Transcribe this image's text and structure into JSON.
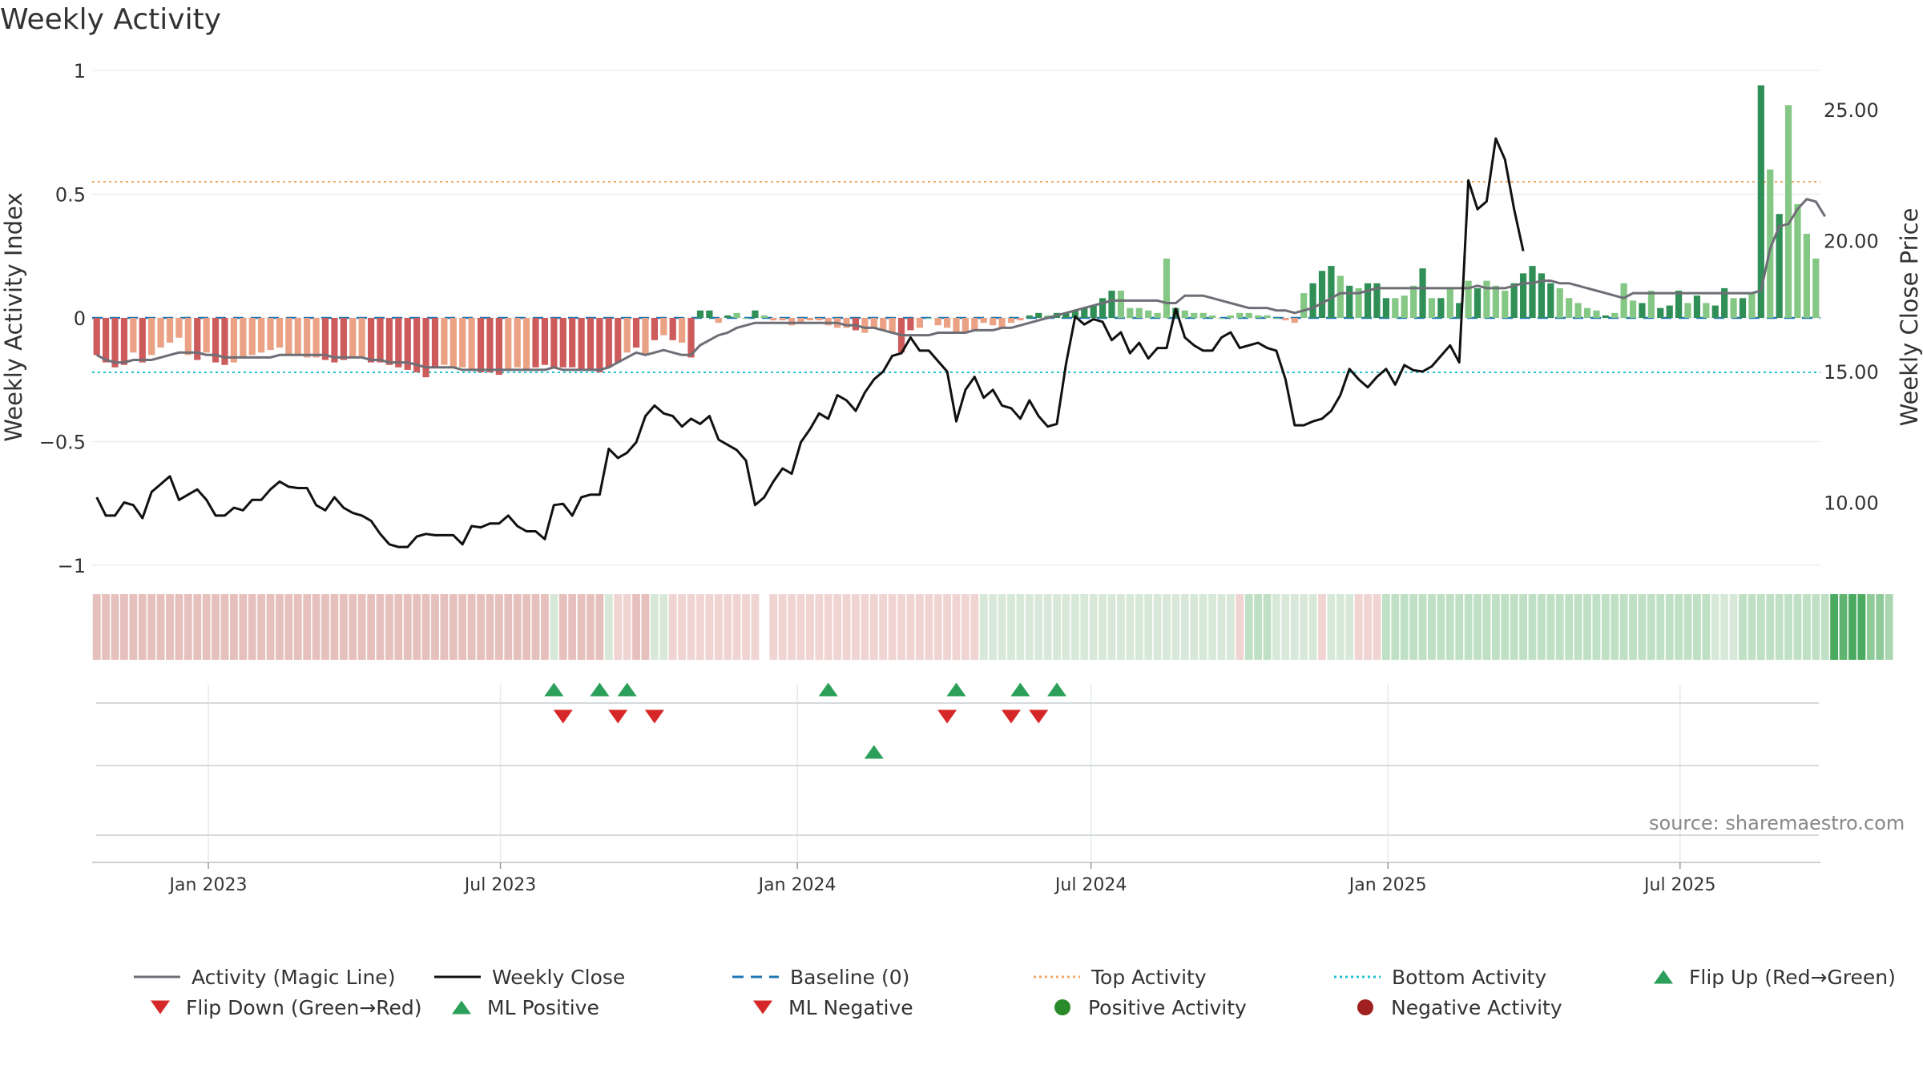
{
  "title": "Weekly Activity",
  "source": "source: sharemaestro.com",
  "colors": {
    "magic": "#6e6e76",
    "close": "#111111",
    "baseline": "#1f77b4",
    "top": "#f0a868",
    "bottom": "#21c3cf",
    "up": "#2ca05a",
    "down": "#d62728",
    "pos": "#2a8a2a",
    "neg": "#a02020"
  },
  "chart_data": {
    "type": "bar",
    "title": "Weekly Activity",
    "xlabel": "",
    "ylabel": "Weekly Activity Index",
    "ylabel_right": "Weekly Close Price",
    "ylim": [
      -1,
      1
    ],
    "ylim_right": [
      7.6,
      26.5
    ],
    "yticks": [
      1,
      0.5,
      0,
      -0.5,
      -1
    ],
    "ytick_labels": [
      "1",
      "0.5",
      "0",
      "−0.5",
      "−1"
    ],
    "yticks_right": [
      25,
      20,
      15,
      10
    ],
    "ytick_labels_right": [
      "25.00",
      "20.00",
      "15.00",
      "10.00"
    ],
    "x_start": "2022-10-21",
    "x_end": "2025-09-26",
    "x_ticks": [
      {
        "label": "Jan 2023",
        "date": "2023-01-01"
      },
      {
        "label": "Jul 2023",
        "date": "2023-07-01"
      },
      {
        "label": "Jan 2024",
        "date": "2024-01-01"
      },
      {
        "label": "Jul 2024",
        "date": "2024-07-01"
      },
      {
        "label": "Jan 2025",
        "date": "2025-01-01"
      },
      {
        "label": "Jul 2025",
        "date": "2025-07-01"
      }
    ],
    "top_activity": 0.55,
    "bottom_activity": -0.22,
    "baseline": 0,
    "activity": [
      -0.15,
      -0.18,
      -0.2,
      -0.19,
      -0.14,
      -0.18,
      -0.15,
      -0.12,
      -0.1,
      -0.08,
      -0.15,
      -0.17,
      -0.14,
      -0.18,
      -0.19,
      -0.18,
      -0.16,
      -0.15,
      -0.14,
      -0.13,
      -0.12,
      -0.15,
      -0.15,
      -0.16,
      -0.16,
      -0.17,
      -0.18,
      -0.17,
      -0.16,
      -0.16,
      -0.18,
      -0.18,
      -0.19,
      -0.2,
      -0.21,
      -0.22,
      -0.24,
      -0.2,
      -0.19,
      -0.2,
      -0.2,
      -0.21,
      -0.22,
      -0.22,
      -0.23,
      -0.21,
      -0.2,
      -0.21,
      -0.2,
      -0.19,
      -0.2,
      -0.2,
      -0.2,
      -0.21,
      -0.21,
      -0.22,
      -0.2,
      -0.18,
      -0.14,
      -0.12,
      -0.15,
      -0.09,
      -0.07,
      -0.09,
      -0.1,
      -0.16,
      0.03,
      0.03,
      -0.02,
      0.01,
      0.02,
      0.0,
      0.03,
      0.01,
      -0.01,
      -0.01,
      -0.03,
      -0.02,
      -0.01,
      -0.01,
      -0.03,
      -0.04,
      -0.04,
      -0.05,
      -0.06,
      -0.04,
      -0.05,
      -0.06,
      -0.14,
      -0.05,
      -0.04,
      0.0,
      -0.03,
      -0.04,
      -0.06,
      -0.06,
      -0.05,
      -0.02,
      -0.03,
      -0.04,
      -0.02,
      -0.01,
      0.01,
      0.02,
      0.01,
      0.02,
      0.02,
      0.03,
      0.04,
      0.05,
      0.08,
      0.11,
      0.11,
      0.04,
      0.04,
      0.03,
      0.02,
      0.24,
      0.04,
      0.03,
      0.02,
      0.02,
      0.01,
      0.0,
      0.01,
      0.02,
      0.02,
      0.01,
      0.01,
      0.0,
      -0.01,
      -0.02,
      0.1,
      0.14,
      0.19,
      0.21,
      0.17,
      0.13,
      0.12,
      0.14,
      0.14,
      0.08,
      0.08,
      0.09,
      0.13,
      0.2,
      0.08,
      0.08,
      0.12,
      0.06,
      0.15,
      0.12,
      0.15,
      0.13,
      0.11,
      0.14,
      0.18,
      0.21,
      0.18,
      0.14,
      0.12,
      0.08,
      0.06,
      0.04,
      0.03,
      0.01,
      0.02,
      0.14,
      0.07,
      0.06,
      0.11,
      0.04,
      0.05,
      0.11,
      0.06,
      0.09,
      0.06,
      0.05,
      0.12,
      0.08,
      0.08,
      0.1,
      0.94,
      0.6,
      0.42,
      0.86,
      0.46,
      0.34,
      0.24
    ],
    "magic_line": [
      -0.15,
      -0.17,
      -0.18,
      -0.18,
      -0.17,
      -0.17,
      -0.17,
      -0.16,
      -0.15,
      -0.14,
      -0.14,
      -0.14,
      -0.15,
      -0.15,
      -0.16,
      -0.16,
      -0.16,
      -0.16,
      -0.16,
      -0.16,
      -0.15,
      -0.15,
      -0.15,
      -0.15,
      -0.15,
      -0.15,
      -0.16,
      -0.16,
      -0.16,
      -0.16,
      -0.17,
      -0.17,
      -0.18,
      -0.18,
      -0.18,
      -0.19,
      -0.2,
      -0.2,
      -0.2,
      -0.2,
      -0.21,
      -0.21,
      -0.21,
      -0.21,
      -0.21,
      -0.21,
      -0.21,
      -0.21,
      -0.21,
      -0.21,
      -0.2,
      -0.21,
      -0.21,
      -0.21,
      -0.21,
      -0.21,
      -0.2,
      -0.18,
      -0.16,
      -0.14,
      -0.15,
      -0.14,
      -0.13,
      -0.14,
      -0.15,
      -0.15,
      -0.11,
      -0.09,
      -0.07,
      -0.06,
      -0.04,
      -0.03,
      -0.02,
      -0.02,
      -0.02,
      -0.02,
      -0.02,
      -0.02,
      -0.02,
      -0.02,
      -0.02,
      -0.02,
      -0.03,
      -0.03,
      -0.04,
      -0.04,
      -0.05,
      -0.06,
      -0.07,
      -0.07,
      -0.07,
      -0.07,
      -0.06,
      -0.06,
      -0.06,
      -0.06,
      -0.05,
      -0.05,
      -0.05,
      -0.04,
      -0.04,
      -0.03,
      -0.02,
      -0.01,
      0.0,
      0.01,
      0.02,
      0.03,
      0.04,
      0.05,
      0.06,
      0.07,
      0.07,
      0.07,
      0.07,
      0.07,
      0.07,
      0.06,
      0.06,
      0.09,
      0.09,
      0.09,
      0.08,
      0.07,
      0.06,
      0.05,
      0.04,
      0.04,
      0.04,
      0.03,
      0.03,
      0.02,
      0.03,
      0.04,
      0.06,
      0.08,
      0.1,
      0.1,
      0.1,
      0.11,
      0.12,
      0.12,
      0.12,
      0.12,
      0.12,
      0.12,
      0.12,
      0.12,
      0.12,
      0.12,
      0.12,
      0.13,
      0.12,
      0.12,
      0.12,
      0.13,
      0.14,
      0.14,
      0.15,
      0.15,
      0.14,
      0.14,
      0.13,
      0.12,
      0.11,
      0.1,
      0.09,
      0.08,
      0.1,
      0.1,
      0.1,
      0.1,
      0.1,
      0.1,
      0.1,
      0.1,
      0.1,
      0.1,
      0.1,
      0.1,
      0.1,
      0.1,
      0.11,
      0.28,
      0.37,
      0.38,
      0.44,
      0.48,
      0.47,
      0.41
    ],
    "weekly_close": [
      10.2,
      9.5,
      9.5,
      10.0,
      9.9,
      9.4,
      10.4,
      10.7,
      11.0,
      10.1,
      10.3,
      10.5,
      10.1,
      9.5,
      9.5,
      9.8,
      9.7,
      10.1,
      10.1,
      10.5,
      10.8,
      10.6,
      10.55,
      10.55,
      9.9,
      9.7,
      10.2,
      9.8,
      9.6,
      9.5,
      9.3,
      8.8,
      8.4,
      8.3,
      8.3,
      8.7,
      8.8,
      8.75,
      8.75,
      8.75,
      8.4,
      9.1,
      9.05,
      9.2,
      9.2,
      9.5,
      9.1,
      8.9,
      8.9,
      8.6,
      9.9,
      9.95,
      9.5,
      10.2,
      10.3,
      10.3,
      12.05,
      11.7,
      11.9,
      12.3,
      13.3,
      13.7,
      13.4,
      13.3,
      12.9,
      13.2,
      13.0,
      13.3,
      12.4,
      12.2,
      12.0,
      11.6,
      9.9,
      10.2,
      10.8,
      11.3,
      11.1,
      12.3,
      12.8,
      13.4,
      13.2,
      14.1,
      13.9,
      13.5,
      14.2,
      14.7,
      15.0,
      15.6,
      15.7,
      16.3,
      15.8,
      15.8,
      15.4,
      15.0,
      13.1,
      14.3,
      14.8,
      14.0,
      14.3,
      13.7,
      13.6,
      13.2,
      13.9,
      13.3,
      12.9,
      13.0,
      15.3,
      17.1,
      16.8,
      17.0,
      16.9,
      16.2,
      16.5,
      15.7,
      16.1,
      15.5,
      15.9,
      15.9,
      17.4,
      16.3,
      16.0,
      15.8,
      15.8,
      16.3,
      16.5,
      15.9,
      16.0,
      16.1,
      15.9,
      15.8,
      14.7,
      12.95,
      12.95,
      13.1,
      13.2,
      13.5,
      14.1,
      15.1,
      14.7,
      14.4,
      14.8,
      15.1,
      14.5,
      15.25,
      15.05,
      15.0,
      15.2,
      15.6,
      16.0,
      15.35,
      22.3,
      21.2,
      21.5,
      23.9,
      23.1,
      21.2,
      19.6
    ],
    "bar_shade": [
      "n",
      "n",
      "n",
      "n",
      "l",
      "n",
      "l",
      "l",
      "l",
      "l",
      "l",
      "n",
      "l",
      "n",
      "n",
      "l",
      "l",
      "l",
      "l",
      "l",
      "l",
      "l",
      "l",
      "l",
      "l",
      "n",
      "n",
      "n",
      "l",
      "l",
      "n",
      "n",
      "n",
      "n",
      "n",
      "n",
      "n",
      "n",
      "l",
      "l",
      "l",
      "l",
      "n",
      "n",
      "n",
      "l",
      "l",
      "l",
      "n",
      "n",
      "n",
      "n",
      "n",
      "n",
      "n",
      "n",
      "n",
      "n",
      "l",
      "n",
      "l",
      "n",
      "l",
      "n",
      "l",
      "n",
      "d",
      "d",
      "l",
      "d",
      "l",
      "l",
      "d",
      "l",
      "l",
      "l",
      "l",
      "l",
      "l",
      "l",
      "l",
      "l",
      "l",
      "n",
      "l",
      "l",
      "l",
      "l",
      "n",
      "n",
      "l",
      "l",
      "l",
      "l",
      "l",
      "l",
      "l",
      "l",
      "l",
      "l",
      "l",
      "l",
      "d",
      "d",
      "l",
      "d",
      "d",
      "d",
      "d",
      "d",
      "d",
      "d",
      "l",
      "l",
      "l",
      "l",
      "l",
      "l",
      "d",
      "l",
      "l",
      "l",
      "l",
      "l",
      "l",
      "l",
      "l",
      "l",
      "l",
      "l",
      "l",
      "l",
      "l",
      "d",
      "d",
      "d",
      "l",
      "d",
      "l",
      "d",
      "d",
      "d",
      "l",
      "l",
      "l",
      "d",
      "l",
      "d",
      "l",
      "d",
      "l",
      "d",
      "l",
      "l",
      "l",
      "d",
      "d",
      "d",
      "d",
      "d",
      "l",
      "l",
      "l",
      "l",
      "l",
      "d",
      "l",
      "l",
      "l",
      "d",
      "l",
      "d",
      "d",
      "d",
      "l",
      "d",
      "l",
      "d",
      "d",
      "l",
      "d",
      "l",
      "d",
      "l",
      "d",
      "l"
    ],
    "strip_colors": [
      "#e6c0bd",
      "#e6c0bd",
      "#e6c0bd",
      "#e6c0bd",
      "#e6c0bd",
      "#e6c0bd",
      "#e6c0bd",
      "#e6c0bd",
      "#e6c0bd",
      "#e6c0bd",
      "#e6c0bd",
      "#e6c0bd",
      "#e6c0bd",
      "#e6c0bd",
      "#e6c0bd",
      "#e6c0bd",
      "#e6c0bd",
      "#e6c0bd",
      "#e6c0bd",
      "#e6c0bd",
      "#e6c0bd",
      "#e6c0bd",
      "#e6c0bd",
      "#e6c0bd",
      "#e6c0bd",
      "#e6c0bd",
      "#e6c0bd",
      "#e6c0bd",
      "#e6c0bd",
      "#e6c0bd",
      "#e6c0bd",
      "#e6c0bd",
      "#e6c0bd",
      "#e6c0bd",
      "#e6c0bd",
      "#e6c0bd",
      "#e6c0bd",
      "#e6c0bd",
      "#e6c0bd",
      "#e6c0bd",
      "#e6c0bd",
      "#e6c0bd",
      "#e6c0bd",
      "#e6c0bd",
      "#e6c0bd",
      "#e6c0bd",
      "#e6c0bd",
      "#e6c0bd",
      "#e6c0bd",
      "#e6c0bd",
      "#d8e8d8",
      "#e6c0bd",
      "#e6c0bd",
      "#e6c0bd",
      "#e6c0bd",
      "#e6c0bd",
      "#d8e8d8",
      "#f0d4d2",
      "#f0d4d2",
      "#e6c0bd",
      "#e6c0bd",
      "#d8e8d8",
      "#d8e8d8",
      "#f0d4d2",
      "#f0d4d2",
      "#f0d4d2",
      "#f0d4d2",
      "#f0d4d2",
      "#f0d4d2",
      "#f0d4d2",
      "#f0d4d2",
      "#f0d4d2",
      "#f0d4d2",
      "#f0d4d2",
      "#f0d4d2",
      "#f0d4d2",
      "#f0d4d2",
      "#f0d4d2",
      "#f0d4d2",
      "#f0d4d2",
      "#f0d4d2",
      "#f0d4d2",
      "#f0d4d2",
      "#f0d4d2",
      "#f0d4d2",
      "#f0d4d2",
      "#f0d4d2",
      "#f0d4d2",
      "#f0d4d2",
      "#f0d4d2",
      "#f0d4d2",
      "#f0d4d2",
      "#f0d4d2",
      "#f0d4d2",
      "#f0d4d2",
      "#f0d4d2",
      "#f0d4d2",
      "#d8e8d8",
      "#d8e8d8",
      "#d8e8d8",
      "#d8e8d8",
      "#d8e8d8",
      "#d8e8d8",
      "#d8e8d8",
      "#d8e8d8",
      "#d8e8d8",
      "#d8e8d8",
      "#d8e8d8",
      "#d8e8d8",
      "#d8e8d8",
      "#d8e8d8",
      "#d8e8d8",
      "#d8e8d8",
      "#d8e8d8",
      "#d8e8d8",
      "#d8e8d8",
      "#d8e8d8",
      "#d8e8d8",
      "#d8e8d8",
      "#d8e8d8",
      "#d8e8d8",
      "#d8e8d8",
      "#d8e8d8",
      "#d8e8d8",
      "#d8e8d8",
      "#f0d4d2",
      "#bfe0c5",
      "#bfe0c5",
      "#bfe0c5",
      "#d8e8d8",
      "#d8e8d8",
      "#d8e8d8",
      "#d8e8d8",
      "#d8e8d8",
      "#f0d4d2",
      "#d8e8d8",
      "#d8e8d8",
      "#d8e8d8",
      "#f0d4d2",
      "#f0d4d2",
      "#f0d4d2",
      "#bfe0c5",
      "#bfe0c5",
      "#bfe0c5",
      "#bfe0c5",
      "#bfe0c5",
      "#bfe0c5",
      "#bfe0c5",
      "#bfe0c5",
      "#bfe0c5",
      "#bfe0c5",
      "#bfe0c5",
      "#bfe0c5",
      "#bfe0c5",
      "#bfe0c5",
      "#bfe0c5",
      "#bfe0c5",
      "#bfe0c5",
      "#bfe0c5",
      "#bfe0c5",
      "#bfe0c5",
      "#bfe0c5",
      "#bfe0c5",
      "#bfe0c5",
      "#bfe0c5",
      "#bfe0c5",
      "#bfe0c5",
      "#bfe0c5",
      "#bfe0c5",
      "#bfe0c5",
      "#bfe0c5",
      "#bfe0c5",
      "#bfe0c5",
      "#bfe0c5",
      "#bfe0c5",
      "#bfe0c5",
      "#bfe0c5",
      "#d8e8d8",
      "#d8e8d8",
      "#d8e8d8",
      "#bfe0c5",
      "#bfe0c5",
      "#bfe0c5",
      "#bfe0c5",
      "#bfe0c5",
      "#bfe0c5",
      "#bfe0c5",
      "#bfe0c5",
      "#bfe0c5",
      "#bfe0c5",
      "#4aaa60",
      "#5fb56f",
      "#4aaa60",
      "#4aaa60",
      "#8ecb98",
      "#8ecb98",
      "#a9d6b0"
    ],
    "strip_gap_index": 73,
    "flip_up_row1": [
      50,
      55,
      58,
      80,
      94,
      101,
      105
    ],
    "flip_down_row1": [
      51,
      57,
      61,
      93,
      100,
      103
    ],
    "flip_up_row2": [
      85
    ]
  },
  "legend": [
    {
      "label": "Activity (Magic Line)",
      "icon": "grey-line-icon"
    },
    {
      "label": "Weekly Close",
      "icon": "black-line-icon"
    },
    {
      "label": "Baseline (0)",
      "icon": "blue-dash-icon"
    },
    {
      "label": "Top Activity",
      "icon": "orange-dot-line-icon"
    },
    {
      "label": "Bottom Activity",
      "icon": "cyan-dot-line-icon"
    },
    {
      "label": "Flip Up (Red→Green)",
      "icon": "green-triangle-up-icon"
    },
    {
      "label": "Flip Down (Green→Red)",
      "icon": "red-triangle-down-icon"
    },
    {
      "label": "ML Positive",
      "icon": "green-triangle-up-icon"
    },
    {
      "label": "ML Negative",
      "icon": "red-triangle-down-icon"
    },
    {
      "label": "Positive Activity",
      "icon": "green-circle-icon"
    },
    {
      "label": "Negative Activity",
      "icon": "red-circle-icon"
    }
  ]
}
